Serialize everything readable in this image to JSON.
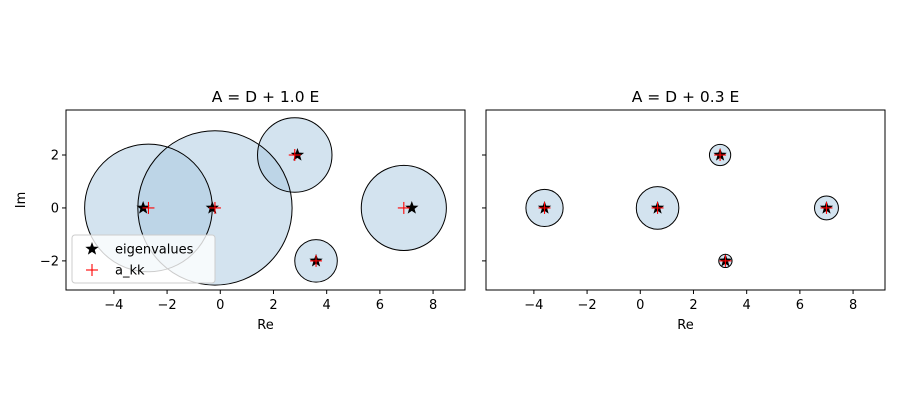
{
  "chart_data": [
    {
      "type": "scatter",
      "title": "A = D + 1.0 E",
      "xlabel": "Re",
      "ylabel": "Im",
      "xlim": [
        -5.8,
        9.2
      ],
      "ylim": [
        -3.1,
        3.7
      ],
      "xticks": [
        -4,
        -2,
        0,
        2,
        4,
        6,
        8
      ],
      "xtick_labels": [
        "−4",
        "−2",
        "0",
        "2",
        "4",
        "6",
        "8"
      ],
      "yticks": [
        -2,
        0,
        2
      ],
      "ytick_labels": [
        "−2",
        "0",
        "2"
      ],
      "fill_color": "#a7c7e0",
      "discs": [
        {
          "cx": -2.7,
          "cy": 0,
          "r": 2.4
        },
        {
          "cx": -0.2,
          "cy": 0,
          "r": 2.9
        },
        {
          "cx": 2.8,
          "cy": 2,
          "r": 1.4
        },
        {
          "cx": 3.6,
          "cy": -2,
          "r": 0.8
        },
        {
          "cx": 6.9,
          "cy": 0,
          "r": 1.6
        }
      ],
      "series": [
        {
          "name": "eigenvalues",
          "marker": "star",
          "color": "#000000",
          "x": [
            -2.9,
            -0.3,
            2.9,
            3.6,
            7.2
          ],
          "y": [
            0,
            0,
            2,
            -2,
            0
          ]
        },
        {
          "name": "a_kk",
          "marker": "plus",
          "color": "#ff0000",
          "x": [
            -2.7,
            -0.2,
            2.8,
            3.6,
            6.9
          ],
          "y": [
            0,
            0,
            2,
            -2,
            0
          ]
        }
      ],
      "legend": {
        "placement": "lower-left"
      }
    },
    {
      "type": "scatter",
      "title": "A = D + 0.3 E",
      "xlabel": "Re",
      "ylabel": "",
      "xlim": [
        -5.8,
        9.2
      ],
      "ylim": [
        -3.1,
        3.7
      ],
      "xticks": [
        -4,
        -2,
        0,
        2,
        4,
        6,
        8
      ],
      "xtick_labels": [
        "−4",
        "−2",
        "0",
        "2",
        "4",
        "6",
        "8"
      ],
      "yticks": [
        -2,
        0,
        2
      ],
      "ytick_labels": [],
      "fill_color": "#a7c7e0",
      "discs": [
        {
          "cx": -3.6,
          "cy": 0,
          "r": 0.7
        },
        {
          "cx": 0.65,
          "cy": 0,
          "r": 0.8
        },
        {
          "cx": 3.0,
          "cy": 2,
          "r": 0.4
        },
        {
          "cx": 3.2,
          "cy": -2,
          "r": 0.25
        },
        {
          "cx": 7.0,
          "cy": 0,
          "r": 0.45
        }
      ],
      "series": [
        {
          "name": "eigenvalues",
          "marker": "star",
          "color": "#000000",
          "x": [
            -3.6,
            0.65,
            3.0,
            3.2,
            7.0
          ],
          "y": [
            0,
            0,
            2,
            -2,
            0
          ]
        },
        {
          "name": "a_kk",
          "marker": "plus",
          "color": "#ff0000",
          "x": [
            -3.6,
            0.65,
            3.0,
            3.2,
            7.0
          ],
          "y": [
            0,
            0,
            2,
            -2,
            0
          ]
        }
      ]
    }
  ]
}
